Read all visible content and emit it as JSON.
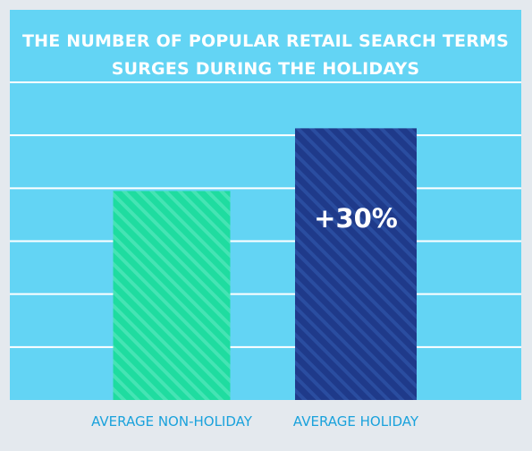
{
  "chart_data": {
    "type": "bar",
    "title": [
      "THE NUMBER OF POPULAR RETAIL SEARCH TERMS",
      "SURGES DURING THE HOLIDAYS"
    ],
    "categories": [
      "AVERAGE NON-HOLIDAY",
      "AVERAGE HOLIDAY"
    ],
    "values": [
      100,
      130
    ],
    "annotations": [
      "",
      "+30%"
    ],
    "ylim": [
      0,
      152
    ],
    "grid": true,
    "colors": [
      "#1fdca0",
      "#1f3a8a"
    ],
    "stripe_colors": [
      "#45e4b4",
      "#2a4da0"
    ]
  }
}
